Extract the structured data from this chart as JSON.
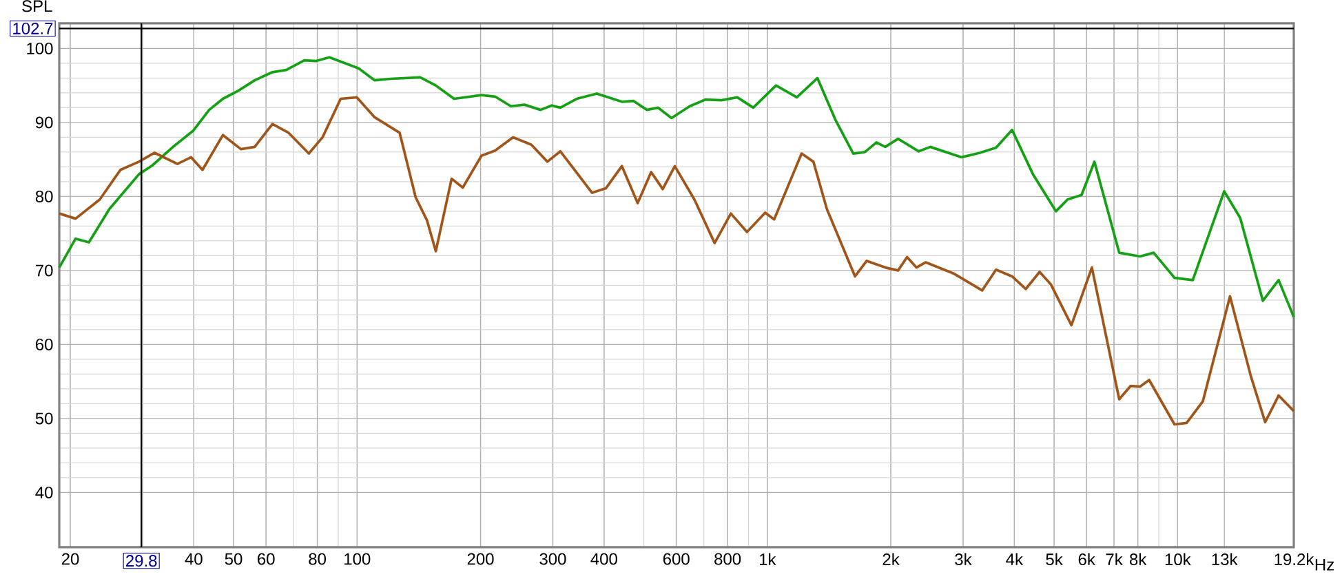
{
  "chart_data": {
    "type": "line",
    "ylabel": "SPL",
    "log": "x",
    "grid": true,
    "marker": "none",
    "line_style": "solid",
    "xlim": [
      18.8,
      19200
    ],
    "ylim": [
      32.6,
      103.4
    ],
    "xticks": [
      20,
      {
        "value": 30,
        "label": null
      },
      40,
      50,
      60,
      80,
      100,
      200,
      300,
      400,
      600,
      800,
      {
        "value": 1000,
        "label": "1k"
      },
      {
        "value": 2000,
        "label": "2k"
      },
      {
        "value": 3000,
        "label": "3k"
      },
      {
        "value": 4000,
        "label": "4k"
      },
      {
        "value": 5000,
        "label": "5k"
      },
      {
        "value": 6000,
        "label": "6k"
      },
      {
        "value": 7000,
        "label": "7k"
      },
      {
        "value": 8000,
        "label": "8k"
      },
      {
        "value": 10000,
        "label": "10k"
      },
      {
        "value": 13000,
        "label": "13k"
      },
      {
        "value": 19200,
        "label": "19.2k"
      }
    ],
    "xlabel": "Hz",
    "yticks": [
      40,
      50,
      60,
      70,
      80,
      90,
      100
    ],
    "ref_lines": [
      {
        "axis": "x",
        "value": 29.8,
        "label": "29.8",
        "color": "#000000"
      },
      {
        "axis": "y",
        "value": 102.7,
        "label": "102.7",
        "color": "#000000"
      }
    ],
    "series": [
      {
        "color": "#16a016",
        "x": [
          18.8,
          20.6,
          22.2,
          24.9,
          29.4,
          31.7,
          35.6,
          39.9,
          43.6,
          47.1,
          51.4,
          56.3,
          62.2,
          67.2,
          74.4,
          79.3,
          85.6,
          93.6,
          101,
          110.4,
          120.7,
          142.5,
          155.6,
          172.4,
          201,
          217,
          237,
          256,
          280,
          298,
          313,
          343,
          384,
          442,
          472,
          509,
          542,
          584,
          647,
          707,
          773,
          845,
          924,
          1050,
          1180,
          1325,
          1464,
          1620,
          1729,
          1845,
          1939,
          2083,
          2339,
          2496,
          2976,
          3297,
          3610,
          3950,
          4441,
          5054,
          5393,
          5833,
          6271,
          7206,
          8095,
          8745,
          9830,
          10890,
          12990,
          14210,
          16140,
          17630,
          19200
        ],
        "values": [
          70.4,
          74.3,
          73.8,
          78.3,
          83.0,
          84.2,
          86.7,
          88.9,
          91.7,
          93.2,
          94.3,
          95.7,
          96.8,
          97.1,
          98.4,
          98.3,
          98.8,
          98.0,
          97.3,
          95.7,
          95.9,
          96.1,
          95.0,
          93.2,
          93.7,
          93.5,
          92.2,
          92.4,
          91.7,
          92.3,
          92.0,
          93.2,
          93.9,
          92.8,
          92.9,
          91.7,
          92.0,
          90.6,
          92.2,
          93.1,
          93.0,
          93.4,
          92.0,
          95.0,
          93.4,
          96.0,
          90.4,
          85.8,
          86.0,
          87.3,
          86.7,
          87.8,
          86.1,
          86.7,
          85.3,
          85.9,
          86.6,
          89.0,
          83.0,
          78.0,
          79.6,
          80.2,
          84.7,
          72.4,
          71.9,
          72.4,
          69.0,
          68.7,
          80.7,
          77.1,
          65.9,
          68.7,
          63.7
        ]
      },
      {
        "color": "#a0561a",
        "x": [
          18.8,
          20.6,
          23.6,
          26.5,
          29.4,
          32.1,
          36.5,
          39.4,
          42.0,
          47.1,
          52.1,
          56.3,
          62.2,
          68.1,
          76.3,
          82.4,
          91.2,
          99.8,
          110.4,
          127,
          138.9,
          148,
          155.6,
          170,
          181,
          201,
          217,
          240,
          266,
          291,
          313,
          374,
          404,
          442,
          483,
          521,
          556,
          595,
          664,
          744,
          815,
          892,
          988,
          1039,
          1212,
          1295,
          1397,
          1636,
          1747,
          1939,
          2083,
          2191,
          2309,
          2431,
          2843,
          3339,
          3610,
          3950,
          4266,
          4610,
          4913,
          5511,
          6182,
          7206,
          7687,
          8095,
          8525,
          9830,
          10520,
          11520,
          13420,
          15090,
          16350,
          17630,
          19200
        ],
        "values": [
          77.7,
          77.0,
          79.6,
          83.6,
          84.7,
          85.9,
          84.4,
          85.3,
          83.6,
          88.3,
          86.4,
          86.7,
          89.8,
          88.6,
          85.8,
          88.0,
          93.2,
          93.4,
          90.7,
          88.6,
          79.9,
          76.8,
          72.6,
          82.4,
          81.2,
          85.5,
          86.2,
          88.0,
          87.0,
          84.7,
          86.1,
          80.5,
          81.1,
          84.1,
          79.1,
          83.3,
          81.0,
          84.1,
          79.6,
          73.7,
          77.7,
          75.2,
          77.8,
          76.9,
          85.8,
          84.7,
          78.3,
          69.2,
          71.3,
          70.4,
          70.0,
          71.8,
          70.4,
          71.1,
          69.6,
          67.3,
          70.1,
          69.2,
          67.5,
          69.8,
          68.1,
          62.6,
          70.4,
          52.6,
          54.4,
          54.3,
          55.2,
          49.2,
          49.4,
          52.3,
          66.5,
          55.7,
          49.5,
          53.1,
          51.0
        ]
      }
    ]
  }
}
